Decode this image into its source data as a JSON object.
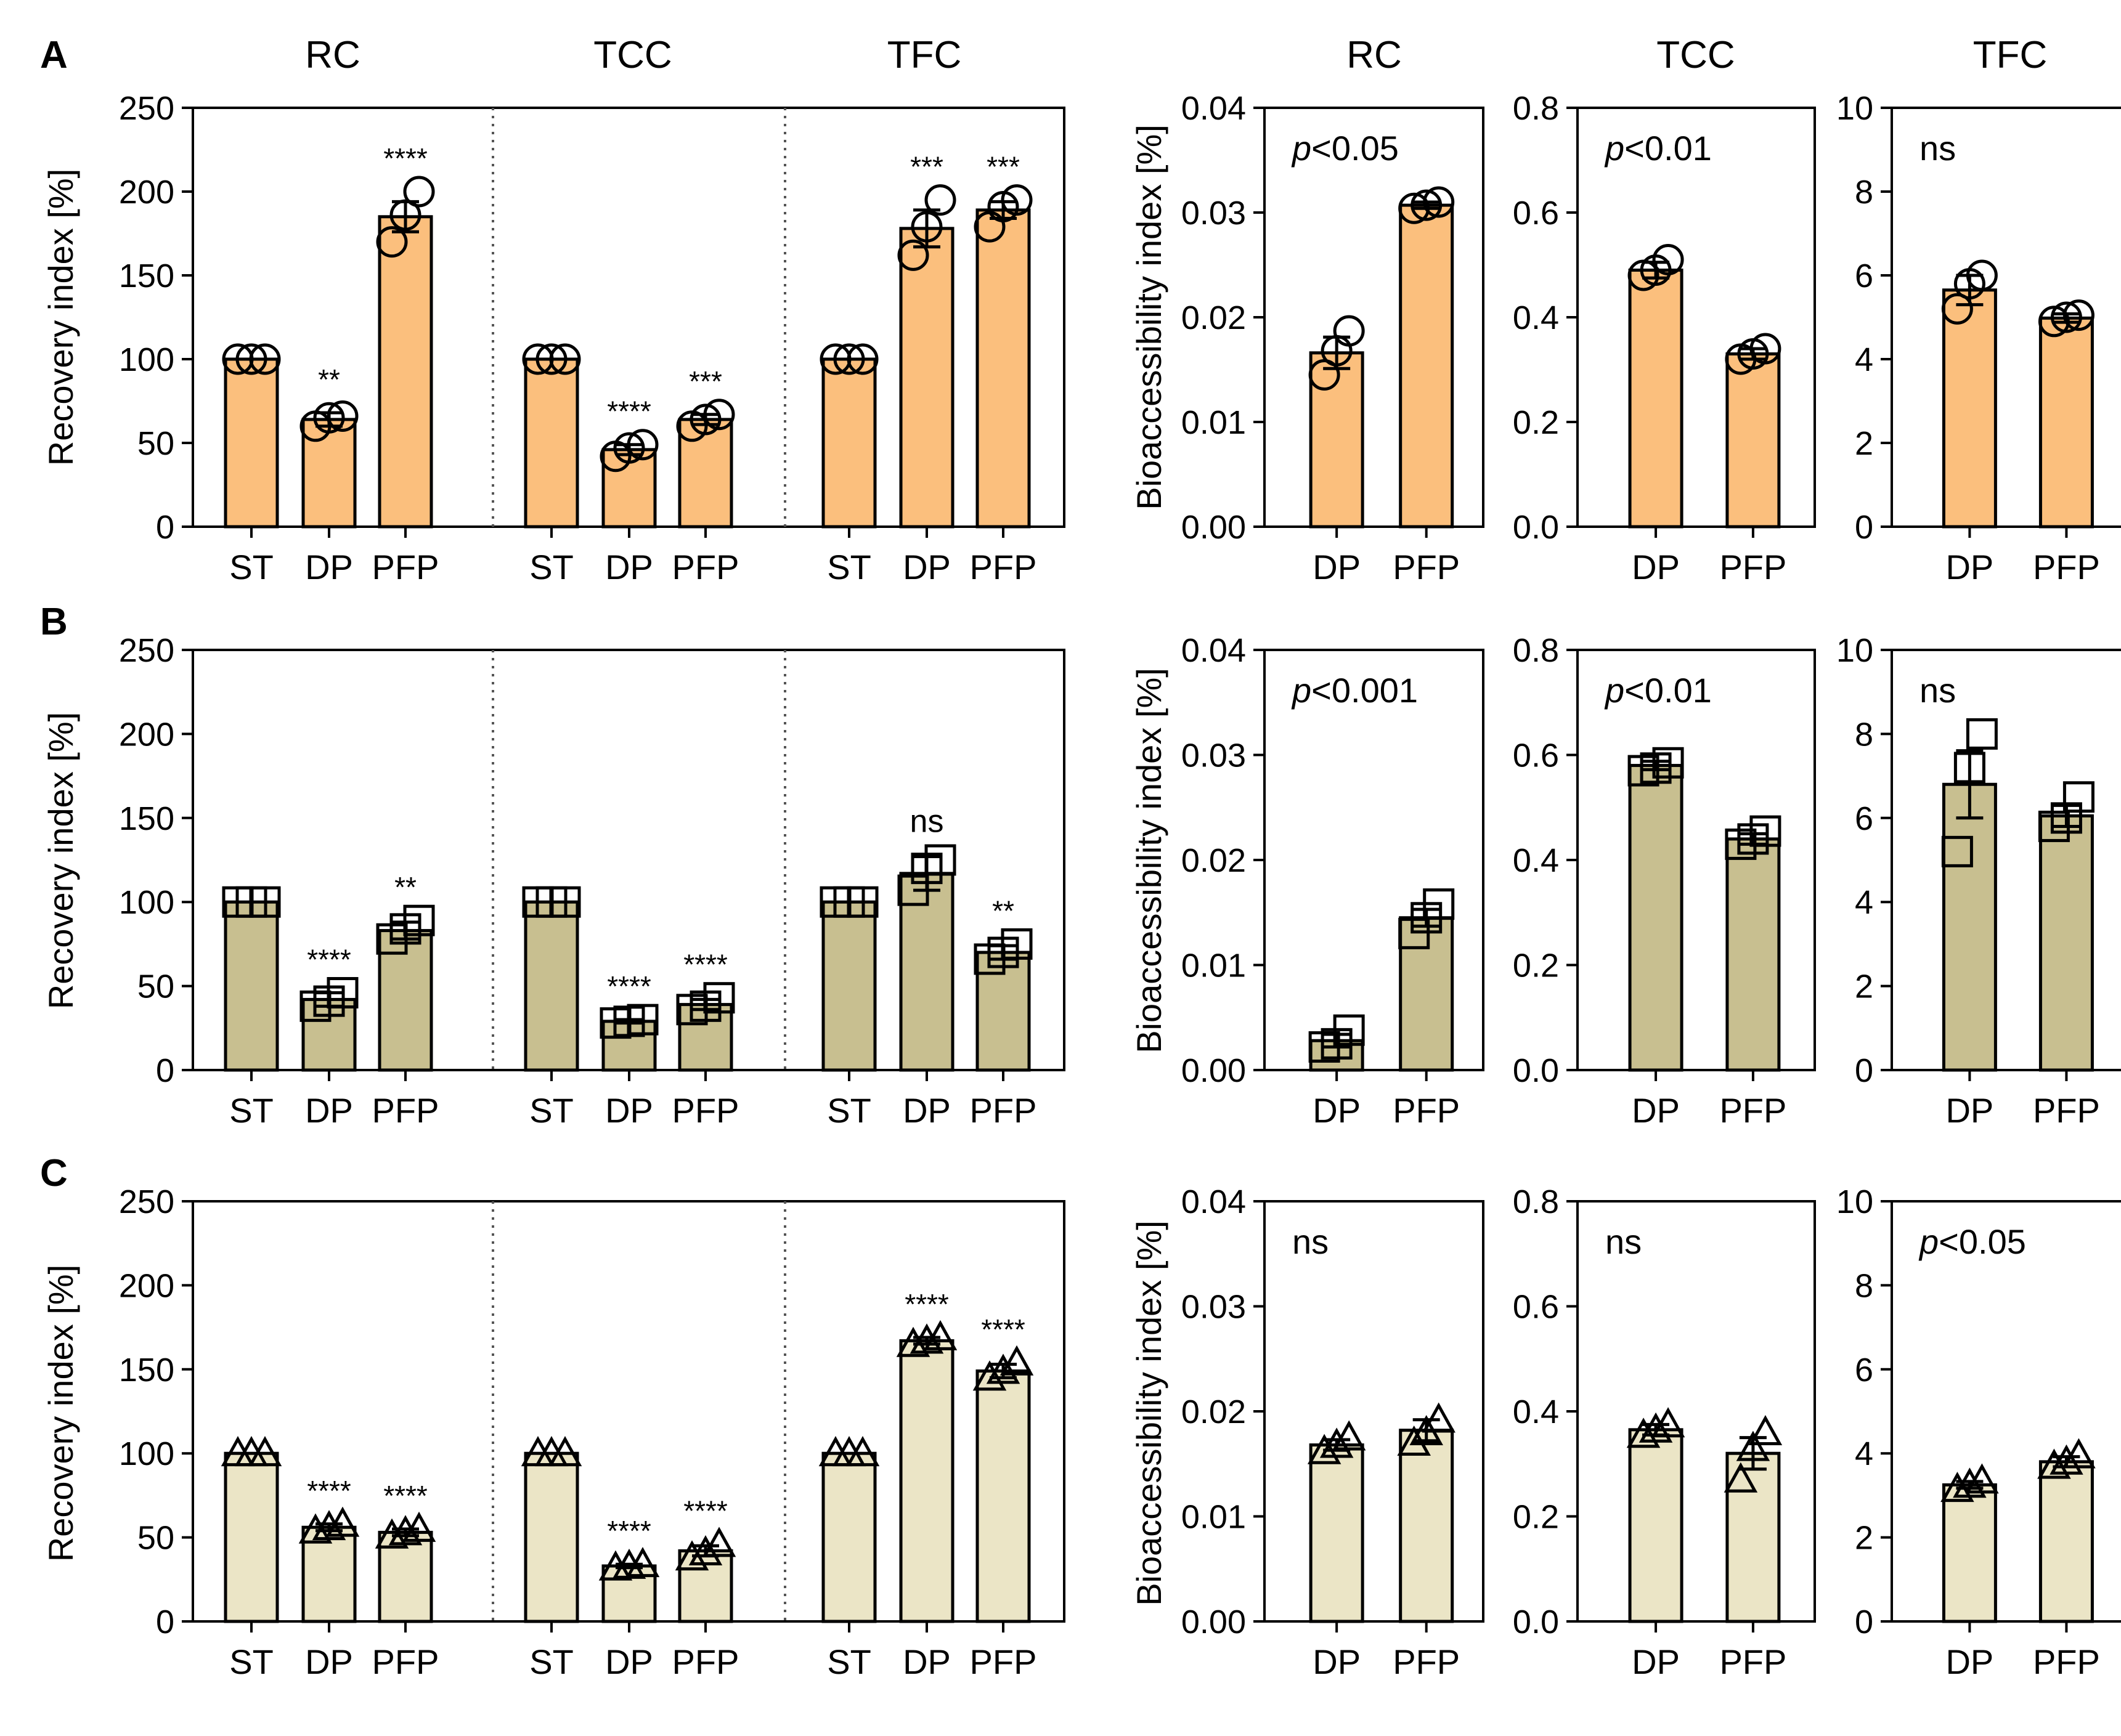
{
  "figure": {
    "column_titles": [
      "RC",
      "TCC",
      "TFC",
      "RC",
      "TCC",
      "TFC"
    ],
    "recovery_ylabel": "Recovery index [%]",
    "bio_ylabel": "Bioaccessibility index [%]",
    "colors": {
      "A": "#fbbf7d",
      "B": "#c8bf90",
      "C": "#ebe5c6",
      "axis": "#000000"
    },
    "markers": {
      "A": "circle",
      "B": "square",
      "C": "triangle"
    }
  },
  "chart_data": [
    {
      "panel": "A",
      "type": "bar",
      "kind": "recovery",
      "groups": [
        "RC",
        "TCC",
        "TFC"
      ],
      "categories": [
        "ST",
        "DP",
        "PFP"
      ],
      "ylim": [
        0,
        250
      ],
      "yticks": [
        0,
        50,
        100,
        150,
        200,
        250
      ],
      "ylabel": "Recovery index [%]",
      "series": [
        {
          "name": "RC",
          "values": [
            100,
            64,
            185
          ],
          "errors": [
            0,
            4,
            9
          ],
          "points": [
            [
              100,
              100,
              100
            ],
            [
              60,
              65,
              66
            ],
            [
              170,
              186,
              200
            ]
          ],
          "sig": [
            "",
            "**",
            "****"
          ]
        },
        {
          "name": "TCC",
          "values": [
            100,
            46,
            64
          ],
          "errors": [
            0,
            3,
            3
          ],
          "points": [
            [
              100,
              100,
              100
            ],
            [
              42,
              47,
              49
            ],
            [
              60,
              64,
              67
            ]
          ],
          "sig": [
            "",
            "****",
            "***"
          ]
        },
        {
          "name": "TFC",
          "values": [
            100,
            178,
            189
          ],
          "errors": [
            0,
            11,
            5
          ],
          "points": [
            [
              100,
              100,
              100
            ],
            [
              162,
              179,
              195
            ],
            [
              179,
              191,
              195
            ]
          ],
          "sig": [
            "",
            "***",
            "***"
          ]
        }
      ]
    },
    {
      "panel": "A",
      "type": "bar",
      "kind": "bioaccessibility",
      "title": "RC",
      "categories": [
        "DP",
        "PFP"
      ],
      "values": [
        0.0166,
        0.0307
      ],
      "errors": [
        0.0015,
        0.0003
      ],
      "points": [
        [
          0.0145,
          0.0168,
          0.0187
        ],
        [
          0.0304,
          0.0307,
          0.031
        ]
      ],
      "ylim": [
        0,
        0.04
      ],
      "yticks": [
        "0.00",
        "0.01",
        "0.02",
        "0.03",
        "0.04"
      ],
      "ylabel": "Bioaccessibility index [%]",
      "annotation_p": "p",
      "annotation_rest": "<0.05"
    },
    {
      "panel": "A",
      "type": "bar",
      "kind": "bioaccessibility",
      "title": "TCC",
      "categories": [
        "DP",
        "PFP"
      ],
      "values": [
        0.49,
        0.33
      ],
      "errors": [
        0.015,
        0.01
      ],
      "points": [
        [
          0.48,
          0.49,
          0.51
        ],
        [
          0.32,
          0.33,
          0.34
        ]
      ],
      "ylim": [
        0,
        0.8
      ],
      "yticks": [
        "0.0",
        "0.2",
        "0.4",
        "0.6",
        "0.8"
      ],
      "annotation_p": "p",
      "annotation_rest": "<0.01"
    },
    {
      "panel": "A",
      "type": "bar",
      "kind": "bioaccessibility",
      "title": "TFC",
      "categories": [
        "DP",
        "PFP"
      ],
      "values": [
        5.65,
        4.98
      ],
      "errors": [
        0.35,
        0.1
      ],
      "points": [
        [
          5.2,
          5.8,
          6.0
        ],
        [
          4.9,
          5.0,
          5.05
        ]
      ],
      "ylim": [
        0,
        10
      ],
      "yticks": [
        "0",
        "2",
        "4",
        "6",
        "8",
        "10"
      ],
      "annotation_p": "",
      "annotation_rest": "ns"
    },
    {
      "panel": "B",
      "type": "bar",
      "kind": "recovery",
      "groups": [
        "RC",
        "TCC",
        "TFC"
      ],
      "categories": [
        "ST",
        "DP",
        "PFP"
      ],
      "ylim": [
        0,
        250
      ],
      "yticks": [
        0,
        50,
        100,
        150,
        200,
        250
      ],
      "ylabel": "Recovery index [%]",
      "series": [
        {
          "name": "RC",
          "values": [
            100,
            42,
            83
          ],
          "errors": [
            0,
            4,
            5
          ],
          "points": [
            [
              100,
              100,
              100
            ],
            [
              38,
              41,
              46
            ],
            [
              78,
              84,
              89
            ]
          ],
          "sig": [
            "",
            "****",
            "**"
          ]
        },
        {
          "name": "TCC",
          "values": [
            100,
            29,
            39
          ],
          "errors": [
            0,
            1,
            3
          ],
          "points": [
            [
              100,
              100,
              100
            ],
            [
              28,
              29,
              30
            ],
            [
              36,
              38,
              43
            ]
          ],
          "sig": [
            "",
            "****",
            "****"
          ]
        },
        {
          "name": "TFC",
          "values": [
            100,
            117,
            70
          ],
          "errors": [
            0,
            10,
            4
          ],
          "points": [
            [
              100,
              100,
              100
            ],
            [
              107,
              120,
              125
            ],
            [
              66,
              70,
              75
            ]
          ],
          "sig": [
            "",
            "ns",
            "**"
          ]
        }
      ]
    },
    {
      "panel": "B",
      "type": "bar",
      "kind": "bioaccessibility",
      "title": "RC",
      "categories": [
        "DP",
        "PFP"
      ],
      "values": [
        0.0028,
        0.0145
      ],
      "errors": [
        0.0006,
        0.0008
      ],
      "points": [
        [
          0.0022,
          0.0025,
          0.0038
        ],
        [
          0.013,
          0.0145,
          0.0158
        ]
      ],
      "ylim": [
        0,
        0.04
      ],
      "yticks": [
        "0.00",
        "0.01",
        "0.02",
        "0.03",
        "0.04"
      ],
      "ylabel": "Bioaccessibility index [%]",
      "annotation_p": "p",
      "annotation_rest": "<0.001"
    },
    {
      "panel": "B",
      "type": "bar",
      "kind": "bioaccessibility",
      "title": "TCC",
      "categories": [
        "DP",
        "PFP"
      ],
      "values": [
        0.58,
        0.44
      ],
      "errors": [
        0.008,
        0.01
      ],
      "points": [
        [
          0.57,
          0.575,
          0.585
        ],
        [
          0.43,
          0.44,
          0.455
        ]
      ],
      "ylim": [
        0,
        0.8
      ],
      "yticks": [
        "0.0",
        "0.2",
        "0.4",
        "0.6",
        "0.8"
      ],
      "annotation_p": "p",
      "annotation_rest": "<0.01"
    },
    {
      "panel": "B",
      "type": "bar",
      "kind": "bioaccessibility",
      "title": "TFC",
      "categories": [
        "DP",
        "PFP"
      ],
      "values": [
        6.8,
        6.05
      ],
      "errors": [
        0.8,
        0.25
      ],
      "points": [
        [
          5.2,
          7.2,
          8.0
        ],
        [
          5.8,
          6.0,
          6.5
        ]
      ],
      "ylim": [
        0,
        10
      ],
      "yticks": [
        "0",
        "2",
        "4",
        "6",
        "8",
        "10"
      ],
      "annotation_p": "",
      "annotation_rest": "ns"
    },
    {
      "panel": "C",
      "type": "bar",
      "kind": "recovery",
      "groups": [
        "RC",
        "TCC",
        "TFC"
      ],
      "categories": [
        "ST",
        "DP",
        "PFP"
      ],
      "ylim": [
        0,
        250
      ],
      "yticks": [
        0,
        50,
        100,
        150,
        200,
        250
      ],
      "ylabel": "Recovery index [%]",
      "series": [
        {
          "name": "RC",
          "values": [
            100,
            56,
            53
          ],
          "errors": [
            0,
            2,
            2
          ],
          "points": [
            [
              100,
              100,
              100
            ],
            [
              54,
              56,
              58
            ],
            [
              51,
              53,
              55
            ]
          ],
          "sig": [
            "",
            "****",
            "****"
          ]
        },
        {
          "name": "TCC",
          "values": [
            100,
            33,
            42
          ],
          "errors": [
            0,
            1,
            3
          ],
          "points": [
            [
              100,
              100,
              100
            ],
            [
              32,
              33,
              34
            ],
            [
              38,
              41,
              46
            ]
          ],
          "sig": [
            "",
            "****",
            "****"
          ]
        },
        {
          "name": "TFC",
          "values": [
            100,
            167,
            149
          ],
          "errors": [
            0,
            2,
            4
          ],
          "points": [
            [
              100,
              100,
              100
            ],
            [
              165,
              167,
              169
            ],
            [
              145,
              149,
              154
            ]
          ],
          "sig": [
            "",
            "****",
            "****"
          ]
        }
      ]
    },
    {
      "panel": "C",
      "type": "bar",
      "kind": "bioaccessibility",
      "title": "RC",
      "categories": [
        "DP",
        "PFP"
      ],
      "values": [
        0.0168,
        0.0182
      ],
      "errors": [
        0.0005,
        0.001
      ],
      "points": [
        [
          0.0162,
          0.0168,
          0.0175
        ],
        [
          0.017,
          0.018,
          0.0192
        ]
      ],
      "ylim": [
        0,
        0.04
      ],
      "yticks": [
        "0.00",
        "0.01",
        "0.02",
        "0.03",
        "0.04"
      ],
      "ylabel": "Bioaccessibility index [%]",
      "annotation_p": "",
      "annotation_rest": "ns"
    },
    {
      "panel": "C",
      "type": "bar",
      "kind": "bioaccessibility",
      "title": "TCC",
      "categories": [
        "DP",
        "PFP"
      ],
      "values": [
        0.365,
        0.32
      ],
      "errors": [
        0.01,
        0.03
      ],
      "points": [
        [
          0.355,
          0.365,
          0.375
        ],
        [
          0.27,
          0.33,
          0.36
        ]
      ],
      "ylim": [
        0,
        0.8
      ],
      "yticks": [
        "0.0",
        "0.2",
        "0.4",
        "0.6",
        "0.8"
      ],
      "annotation_p": "",
      "annotation_rest": "ns"
    },
    {
      "panel": "C",
      "type": "bar",
      "kind": "bioaccessibility",
      "title": "TFC",
      "categories": [
        "DP",
        "PFP"
      ],
      "values": [
        3.25,
        3.8
      ],
      "errors": [
        0.08,
        0.12
      ],
      "points": [
        [
          3.15,
          3.25,
          3.35
        ],
        [
          3.7,
          3.8,
          3.95
        ]
      ],
      "ylim": [
        0,
        10
      ],
      "yticks": [
        "0",
        "2",
        "4",
        "6",
        "8",
        "10"
      ],
      "annotation_p": "p",
      "annotation_rest": "<0.05"
    }
  ]
}
